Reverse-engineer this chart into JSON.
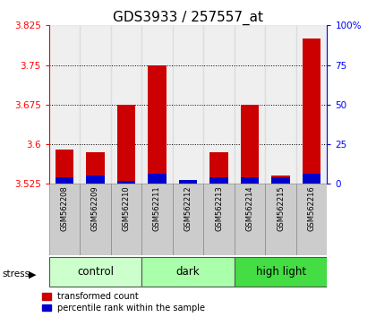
{
  "title": "GDS3933 / 257557_at",
  "samples": [
    "GSM562208",
    "GSM562209",
    "GSM562210",
    "GSM562211",
    "GSM562212",
    "GSM562213",
    "GSM562214",
    "GSM562215",
    "GSM562216"
  ],
  "red_values": [
    3.59,
    3.585,
    3.675,
    3.75,
    3.527,
    3.585,
    3.675,
    3.54,
    3.8
  ],
  "blue_values": [
    4.0,
    5.0,
    2.0,
    6.5,
    2.5,
    4.0,
    4.0,
    4.0,
    6.5
  ],
  "ylim_left": [
    3.525,
    3.825
  ],
  "ylim_right": [
    0,
    100
  ],
  "yticks_left": [
    3.525,
    3.6,
    3.675,
    3.75,
    3.825
  ],
  "yticks_right": [
    0,
    25,
    50,
    75,
    100
  ],
  "ytick_labels_right": [
    "0",
    "25",
    "50",
    "75",
    "100%"
  ],
  "groups": [
    {
      "label": "control",
      "start": 0,
      "end": 3,
      "color": "#ccffcc"
    },
    {
      "label": "dark",
      "start": 3,
      "end": 6,
      "color": "#aaffaa"
    },
    {
      "label": "high light",
      "start": 6,
      "end": 9,
      "color": "#44dd44"
    }
  ],
  "bar_width": 0.6,
  "base_value": 3.525,
  "red_color": "#cc0000",
  "blue_color": "#0000cc",
  "bg_color": "#ffffff",
  "sample_bg": "#cccccc",
  "title_fontsize": 11,
  "tick_fontsize": 7.5,
  "label_fontsize": 8.5
}
